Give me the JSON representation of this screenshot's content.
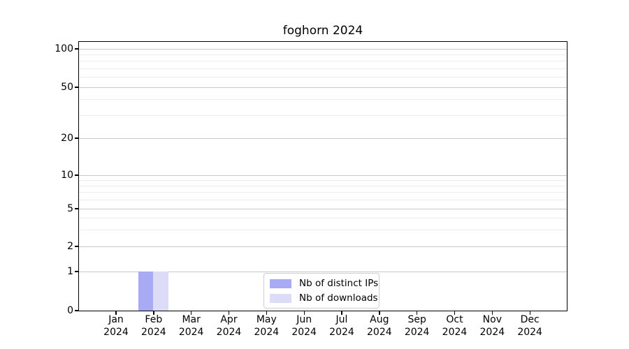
{
  "figure": {
    "title": "foghorn 2024"
  },
  "legend": {
    "items": [
      {
        "label": "Nb of distinct IPs",
        "color": "#a9aaf4"
      },
      {
        "label": "Nb of downloads",
        "color": "#dcdcf8"
      }
    ]
  },
  "chart_data": {
    "type": "bar",
    "title": "foghorn 2024",
    "scale": "symlog",
    "grid": true,
    "legend_position": "lower center",
    "ylim": [
      0,
      107
    ],
    "yticks_labeled": [
      0,
      1,
      2,
      5,
      10,
      20,
      50,
      100
    ],
    "yticks_minor": [
      3,
      4,
      6,
      7,
      8,
      9,
      30,
      40,
      60,
      70,
      80,
      90
    ],
    "categories": [
      {
        "month": "Jan",
        "year": "2024"
      },
      {
        "month": "Feb",
        "year": "2024"
      },
      {
        "month": "Mar",
        "year": "2024"
      },
      {
        "month": "Apr",
        "year": "2024"
      },
      {
        "month": "May",
        "year": "2024"
      },
      {
        "month": "Jun",
        "year": "2024"
      },
      {
        "month": "Jul",
        "year": "2024"
      },
      {
        "month": "Aug",
        "year": "2024"
      },
      {
        "month": "Sep",
        "year": "2024"
      },
      {
        "month": "Oct",
        "year": "2024"
      },
      {
        "month": "Nov",
        "year": "2024"
      },
      {
        "month": "Dec",
        "year": "2024"
      }
    ],
    "series": [
      {
        "name": "Nb of distinct IPs",
        "color": "#a9aaf4",
        "values": [
          0,
          1,
          0,
          0,
          0,
          0,
          0,
          0,
          0,
          0,
          0,
          0
        ]
      },
      {
        "name": "Nb of downloads",
        "color": "#dcdcf8",
        "values": [
          0,
          1,
          0,
          0,
          0,
          0,
          0,
          0,
          0,
          0,
          0,
          0
        ]
      }
    ]
  }
}
